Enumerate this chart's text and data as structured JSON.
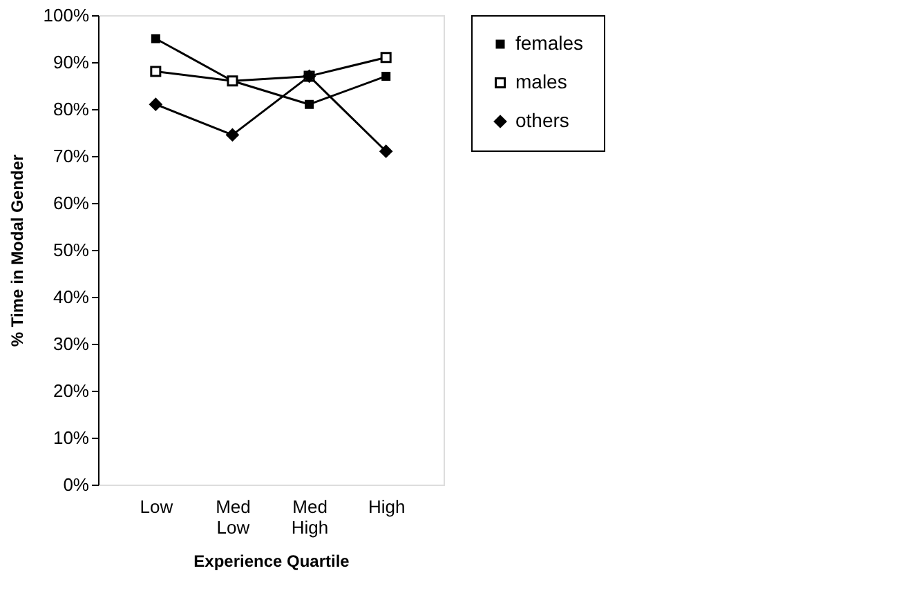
{
  "chart_data": {
    "type": "line",
    "xlabel": "Experience Quartile",
    "ylabel": "% Time in Modal Gender",
    "categories": [
      "Low",
      "Med Low",
      "Med High",
      "High"
    ],
    "series": [
      {
        "name": "females",
        "color": "#000000",
        "marker": "square",
        "values": [
          95,
          86,
          81,
          87
        ]
      },
      {
        "name": "males",
        "color": "#000000",
        "marker": "square",
        "values": [
          88,
          86,
          87,
          91
        ]
      },
      {
        "name": "others",
        "color": "#000000",
        "marker": "diamond",
        "values": [
          81,
          74.5,
          87,
          71
        ]
      }
    ],
    "ylim": [
      0,
      100
    ],
    "yticks": [
      {
        "value": 0,
        "label": "0%"
      },
      {
        "value": 10,
        "label": "10%"
      },
      {
        "value": 20,
        "label": "20%"
      },
      {
        "value": 30,
        "label": "30%"
      },
      {
        "value": 40,
        "label": "40%"
      },
      {
        "value": 50,
        "label": "50%"
      },
      {
        "value": 60,
        "label": "60%"
      },
      {
        "value": 70,
        "label": "70%"
      },
      {
        "value": 80,
        "label": "80%"
      },
      {
        "value": 90,
        "label": "90%"
      },
      {
        "value": 100,
        "label": "100%"
      }
    ],
    "grid": false,
    "legend": "right",
    "line_style": "solid"
  }
}
